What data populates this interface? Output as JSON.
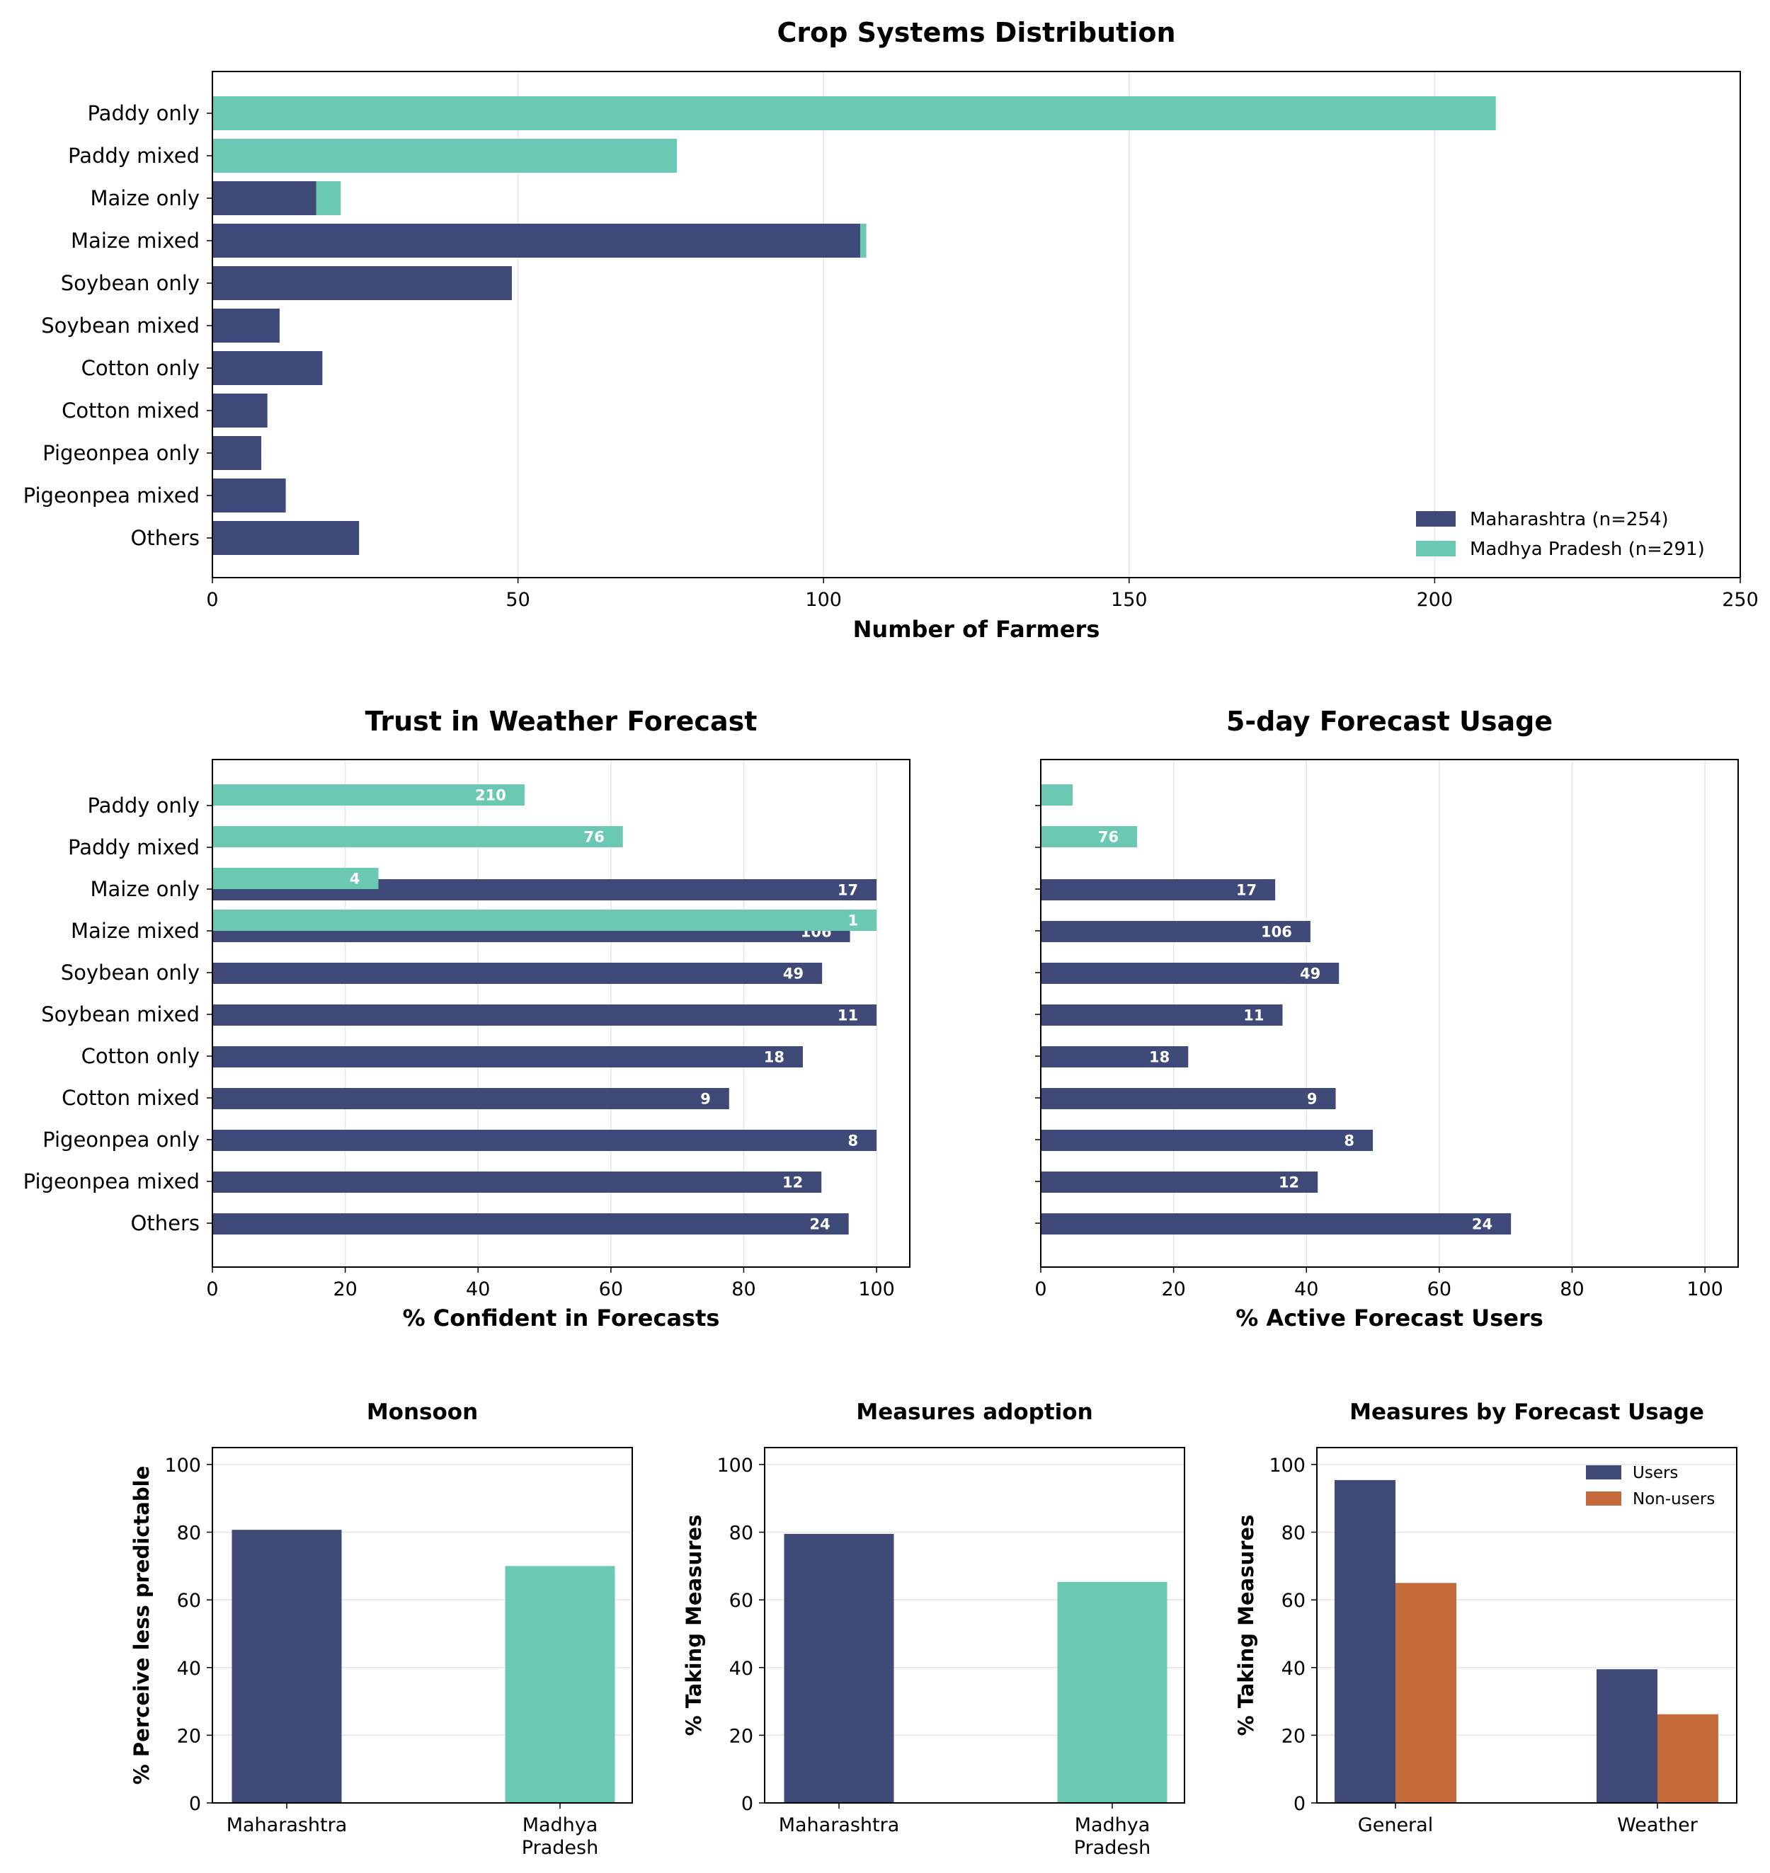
{
  "colors": {
    "maharashtra": "#3f4a78",
    "madhya_pradesh": "#6bc9b3",
    "users": "#3f4a78",
    "non_users": "#c56a3a",
    "grid": "#e5e5e5"
  },
  "chart_data": [
    {
      "id": "crop",
      "type": "bar",
      "orientation": "horizontal",
      "stacked": true,
      "title": "Crop Systems Distribution",
      "xlabel": "Number of Farmers",
      "xlim": [
        0,
        250
      ],
      "xticks": [
        "0",
        "50",
        "100",
        "150",
        "200",
        "250"
      ],
      "categories": [
        "Paddy only",
        "Paddy mixed",
        "Maize only",
        "Maize mixed",
        "Soybean only",
        "Soybean mixed",
        "Cotton only",
        "Cotton mixed",
        "Pigeonpea only",
        "Pigeonpea mixed",
        "Others"
      ],
      "series": [
        {
          "name": "Maharashtra (n=254)",
          "values": [
            0,
            0,
            17,
            106,
            49,
            11,
            18,
            9,
            8,
            12,
            24
          ]
        },
        {
          "name": "Madhya Pradesh (n=291)",
          "values": [
            210,
            76,
            4,
            1,
            0,
            0,
            0,
            0,
            0,
            0,
            0
          ]
        }
      ],
      "legend": "bottom-right"
    },
    {
      "id": "trust",
      "type": "bar",
      "orientation": "horizontal",
      "title": "Trust in Weather Forecast",
      "xlabel": "% Confident in Forecasts",
      "xlim": [
        0,
        105
      ],
      "xticks": [
        "0",
        "20",
        "40",
        "60",
        "80",
        "100"
      ],
      "categories": [
        "Paddy only",
        "Paddy mixed",
        "Maize only",
        "Maize mixed",
        "Soybean only",
        "Soybean mixed",
        "Cotton only",
        "Cotton mixed",
        "Pigeonpea only",
        "Pigeonpea mixed",
        "Others"
      ],
      "series": [
        {
          "name": "Maharashtra",
          "values": [
            null,
            null,
            100,
            96,
            91.8,
            100,
            88.9,
            77.8,
            100,
            91.7,
            95.8
          ],
          "labels": [
            "",
            "",
            "17",
            "106",
            "49",
            "11",
            "18",
            "9",
            "8",
            "12",
            "24"
          ]
        },
        {
          "name": "Madhya Pradesh",
          "values": [
            47,
            61.8,
            25,
            100,
            null,
            null,
            null,
            null,
            null,
            null,
            null
          ],
          "labels": [
            "210",
            "76",
            "4",
            "1",
            "",
            "",
            "",
            "",
            "",
            "",
            ""
          ]
        }
      ]
    },
    {
      "id": "usage",
      "type": "bar",
      "orientation": "horizontal",
      "title": "5-day Forecast Usage",
      "xlabel": "% Active Forecast Users",
      "xlim": [
        0,
        105
      ],
      "xticks": [
        "0",
        "20",
        "40",
        "60",
        "80",
        "100"
      ],
      "categories": [
        "Paddy only",
        "Paddy mixed",
        "Maize only",
        "Maize mixed",
        "Soybean only",
        "Soybean mixed",
        "Cotton only",
        "Cotton mixed",
        "Pigeonpea only",
        "Pigeonpea mixed",
        "Others"
      ],
      "series": [
        {
          "name": "Maharashtra",
          "values": [
            null,
            null,
            35.3,
            40.6,
            44.9,
            36.4,
            22.2,
            44.4,
            50,
            41.7,
            70.8
          ],
          "labels": [
            "",
            "",
            "17",
            "106",
            "49",
            "11",
            "18",
            "9",
            "8",
            "12",
            "24"
          ]
        },
        {
          "name": "Madhya Pradesh",
          "values": [
            4.8,
            14.5,
            null,
            null,
            null,
            null,
            null,
            null,
            null,
            null,
            null
          ],
          "labels": [
            "",
            "76",
            "",
            "",
            "",
            "",
            "",
            "",
            "",
            "",
            ""
          ]
        }
      ]
    },
    {
      "id": "monsoon",
      "type": "bar",
      "title": "Monsoon",
      "ylabel": "% Perceive less predictable",
      "ylim": [
        0,
        105
      ],
      "yticks": [
        "0",
        "20",
        "40",
        "60",
        "80",
        "100"
      ],
      "categories": [
        "Maharashtra",
        "Madhya Pradesh"
      ],
      "values": [
        80.7,
        70
      ]
    },
    {
      "id": "adoption",
      "type": "bar",
      "title": "Measures adoption",
      "ylabel": "% Taking Measures",
      "ylim": [
        0,
        105
      ],
      "yticks": [
        "0",
        "20",
        "40",
        "60",
        "80",
        "100"
      ],
      "categories": [
        "Maharashtra",
        "Madhya Pradesh"
      ],
      "values": [
        79.5,
        65.3
      ]
    },
    {
      "id": "byusage",
      "type": "bar",
      "title": "Measures by Forecast Usage",
      "ylabel": "% Taking Measures",
      "ylim": [
        0,
        105
      ],
      "yticks": [
        "0",
        "20",
        "40",
        "60",
        "80",
        "100"
      ],
      "categories": [
        "General",
        "Weather"
      ],
      "series": [
        {
          "name": "Users",
          "values": [
            95.4,
            39.5
          ]
        },
        {
          "name": "Non-users",
          "values": [
            65,
            26.2
          ]
        }
      ],
      "legend": "top-right"
    }
  ]
}
